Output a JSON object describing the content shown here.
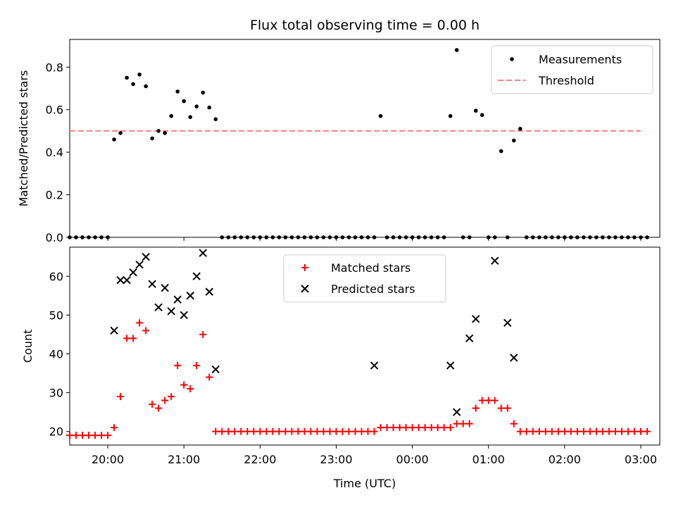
{
  "colors": {
    "measurements": "#000000",
    "threshold": "#ff7f7f",
    "matched": "#ff0000",
    "predicted": "#000000"
  },
  "chart_data": [
    {
      "type": "scatter",
      "title": "Flux total observing time = 0.00 h",
      "xlabel": "",
      "ylabel": "Matched/Predicted stars",
      "xlim": [
        "19:30",
        "03:15"
      ],
      "ylim": [
        0,
        0.93
      ],
      "yticks": [
        0.0,
        0.2,
        0.4,
        0.6,
        0.8
      ],
      "ytick_labels": [
        "0.0",
        "0.2",
        "0.4",
        "0.6",
        "0.8"
      ],
      "grid": false,
      "legend": "top-right",
      "series": [
        {
          "name": "Measurements",
          "marker": "dot",
          "x": [
            "19:30",
            "19:35",
            "19:40",
            "19:45",
            "19:50",
            "19:55",
            "20:00",
            "20:05",
            "20:10",
            "20:15",
            "20:20",
            "20:25",
            "20:30",
            "20:35",
            "20:40",
            "20:45",
            "20:50",
            "20:55",
            "21:00",
            "21:05",
            "21:10",
            "21:15",
            "21:20",
            "21:25",
            "21:30",
            "21:35",
            "21:40",
            "21:45",
            "21:50",
            "21:55",
            "22:00",
            "22:05",
            "22:10",
            "22:15",
            "22:20",
            "22:25",
            "22:30",
            "22:35",
            "22:40",
            "22:45",
            "22:50",
            "22:55",
            "23:00",
            "23:05",
            "23:10",
            "23:15",
            "23:20",
            "23:25",
            "23:30",
            "23:35",
            "23:40",
            "23:45",
            "23:50",
            "23:55",
            "00:00",
            "00:05",
            "00:10",
            "00:15",
            "00:20",
            "00:25",
            "00:30",
            "00:35",
            "00:40",
            "00:45",
            "00:50",
            "00:55",
            "01:00",
            "01:05",
            "01:10",
            "01:15",
            "01:20",
            "01:25",
            "01:30",
            "01:35",
            "01:40",
            "01:45",
            "01:50",
            "01:55",
            "02:00",
            "02:05",
            "02:10",
            "02:15",
            "02:20",
            "02:25",
            "02:30",
            "02:35",
            "02:40",
            "02:45",
            "02:50",
            "02:55",
            "03:00",
            "03:05"
          ],
          "y": [
            0,
            0,
            0,
            0,
            0,
            0,
            0,
            0.46,
            0.49,
            0.75,
            0.72,
            0.765,
            0.71,
            0.465,
            0.5,
            0.49,
            0.57,
            0.685,
            0.64,
            0.565,
            0.615,
            0.68,
            0.61,
            0.555,
            0,
            0,
            0,
            0,
            0,
            0,
            0,
            0,
            0,
            0,
            0,
            0,
            0,
            0,
            0,
            0,
            0,
            0,
            0,
            0,
            0,
            0,
            0,
            0,
            0,
            0.57,
            0,
            0,
            0,
            0,
            0,
            0,
            0,
            0,
            0,
            0,
            0.57,
            0.88,
            0,
            0,
            0.595,
            0.575,
            0,
            0,
            0.405,
            0,
            0.455,
            0.51,
            0,
            0,
            0,
            0,
            0,
            0,
            0,
            0,
            0,
            0,
            0,
            0,
            0,
            0,
            0,
            0,
            0,
            0,
            0,
            0
          ]
        },
        {
          "name": "Threshold",
          "type": "line",
          "style": "dashed",
          "x": [
            "19:30",
            "03:00"
          ],
          "y": [
            0.5,
            0.5
          ]
        }
      ]
    },
    {
      "type": "scatter",
      "title": "",
      "xlabel": "Time (UTC)",
      "ylabel": "Count",
      "xlim": [
        "19:30",
        "03:15"
      ],
      "ylim": [
        16.5,
        67.5
      ],
      "yticks": [
        20,
        30,
        40,
        50,
        60
      ],
      "ytick_labels": [
        "20",
        "30",
        "40",
        "50",
        "60"
      ],
      "xticks": [
        "20:00",
        "21:00",
        "22:00",
        "23:00",
        "00:00",
        "01:00",
        "02:00",
        "03:00"
      ],
      "xtick_labels": [
        "20:00",
        "21:00",
        "22:00",
        "23:00",
        "00:00",
        "01:00",
        "02:00",
        "03:00"
      ],
      "grid": false,
      "legend": "top-center",
      "series": [
        {
          "name": "Matched stars",
          "marker": "plus",
          "x": [
            "19:30",
            "19:35",
            "19:40",
            "19:45",
            "19:50",
            "19:55",
            "20:00",
            "20:05",
            "20:10",
            "20:15",
            "20:20",
            "20:25",
            "20:30",
            "20:35",
            "20:40",
            "20:45",
            "20:50",
            "20:55",
            "21:00",
            "21:05",
            "21:10",
            "21:15",
            "21:20",
            "21:25",
            "21:30",
            "21:35",
            "21:40",
            "21:45",
            "21:50",
            "21:55",
            "22:00",
            "22:05",
            "22:10",
            "22:15",
            "22:20",
            "22:25",
            "22:30",
            "22:35",
            "22:40",
            "22:45",
            "22:50",
            "22:55",
            "23:00",
            "23:05",
            "23:10",
            "23:15",
            "23:20",
            "23:25",
            "23:30",
            "23:35",
            "23:40",
            "23:45",
            "23:50",
            "23:55",
            "00:00",
            "00:05",
            "00:10",
            "00:15",
            "00:20",
            "00:25",
            "00:30",
            "00:35",
            "00:40",
            "00:45",
            "00:50",
            "00:55",
            "01:00",
            "01:05",
            "01:10",
            "01:15",
            "01:20",
            "01:25",
            "01:30",
            "01:35",
            "01:40",
            "01:45",
            "01:50",
            "01:55",
            "02:00",
            "02:05",
            "02:10",
            "02:15",
            "02:20",
            "02:25",
            "02:30",
            "02:35",
            "02:40",
            "02:45",
            "02:50",
            "02:55",
            "03:00",
            "03:05"
          ],
          "y": [
            19,
            19,
            19,
            19,
            19,
            19,
            19,
            21,
            29,
            44,
            44,
            48,
            46,
            27,
            26,
            28,
            29,
            37,
            32,
            31,
            37,
            45,
            34,
            20,
            20,
            20,
            20,
            20,
            20,
            20,
            20,
            20,
            20,
            20,
            20,
            20,
            20,
            20,
            20,
            20,
            20,
            20,
            20,
            20,
            20,
            20,
            20,
            20,
            20,
            21,
            21,
            21,
            21,
            21,
            21,
            21,
            21,
            21,
            21,
            21,
            21,
            22,
            22,
            22,
            26,
            28,
            28,
            28,
            26,
            26,
            22,
            20,
            20,
            20,
            20,
            20,
            20,
            20,
            20,
            20,
            20,
            20,
            20,
            20,
            20,
            20,
            20,
            20,
            20,
            20,
            20,
            20
          ]
        },
        {
          "name": "Predicted stars",
          "marker": "x",
          "x": [
            "20:05",
            "20:10",
            "20:15",
            "20:20",
            "20:25",
            "20:30",
            "20:35",
            "20:40",
            "20:45",
            "20:50",
            "20:55",
            "21:00",
            "21:05",
            "21:10",
            "21:15",
            "21:20",
            "21:25",
            "23:30",
            "00:30",
            "00:35",
            "00:45",
            "00:50",
            "01:05",
            "01:15",
            "01:20"
          ],
          "y": [
            46,
            59,
            59,
            61,
            63,
            65,
            58,
            52,
            57,
            51,
            54,
            50,
            55,
            60,
            66,
            56,
            36,
            37,
            37,
            25,
            44,
            49,
            64,
            48,
            39
          ]
        }
      ]
    }
  ]
}
